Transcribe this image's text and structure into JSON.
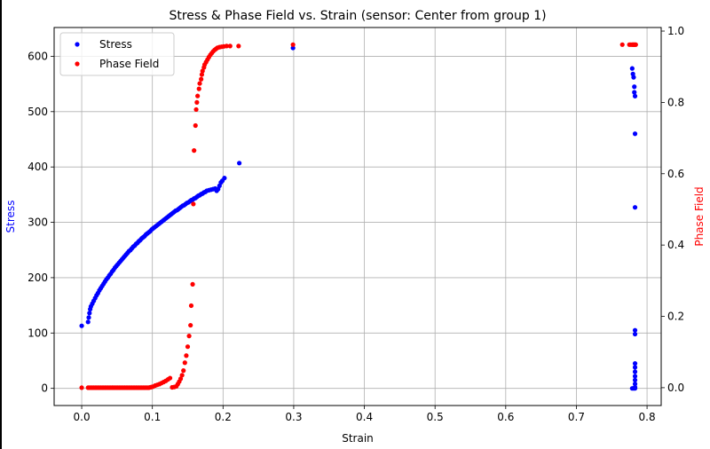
{
  "chart_data": {
    "type": "scatter",
    "title": "Stress & Phase Field vs. Strain (sensor: Center from group 1)",
    "xlabel": "Strain",
    "ylabel_left": "Stress",
    "ylabel_right": "Phase Field",
    "xlim": [
      -0.039,
      0.82
    ],
    "ylim_left": [
      -31,
      652
    ],
    "ylim_right": [
      -0.05,
      1.01
    ],
    "x_ticks": [
      0.0,
      0.1,
      0.2,
      0.3,
      0.4,
      0.5,
      0.6,
      0.7,
      0.8
    ],
    "x_tick_labels": [
      "0.0",
      "0.1",
      "0.2",
      "0.3",
      "0.4",
      "0.5",
      "0.6",
      "0.7",
      "0.8"
    ],
    "y_left_ticks": [
      0,
      100,
      200,
      300,
      400,
      500,
      600
    ],
    "y_left_tick_labels": [
      "0",
      "100",
      "200",
      "300",
      "400",
      "500",
      "600"
    ],
    "y_right_ticks": [
      0.0,
      0.2,
      0.4,
      0.6,
      0.8,
      1.0
    ],
    "y_right_tick_labels": [
      "0.0",
      "0.2",
      "0.4",
      "0.6",
      "0.8",
      "1.0"
    ],
    "grid": true,
    "legend_position": "upper-left",
    "series": [
      {
        "name": "Stress",
        "axis": "left",
        "color": "#0000ff",
        "points": [
          [
            0.0,
            113
          ],
          [
            0.009,
            120
          ],
          [
            0.01,
            128
          ],
          [
            0.011,
            136
          ],
          [
            0.012,
            143
          ],
          [
            0.013,
            148
          ],
          [
            0.015,
            153
          ],
          [
            0.017,
            158
          ],
          [
            0.019,
            163
          ],
          [
            0.021,
            168
          ],
          [
            0.023,
            172
          ],
          [
            0.025,
            177
          ],
          [
            0.027,
            181
          ],
          [
            0.029,
            185
          ],
          [
            0.031,
            189
          ],
          [
            0.033,
            193
          ],
          [
            0.035,
            197
          ],
          [
            0.037,
            200
          ],
          [
            0.039,
            204
          ],
          [
            0.041,
            207
          ],
          [
            0.043,
            211
          ],
          [
            0.045,
            214
          ],
          [
            0.047,
            218
          ],
          [
            0.049,
            221
          ],
          [
            0.051,
            224
          ],
          [
            0.053,
            227
          ],
          [
            0.055,
            230
          ],
          [
            0.057,
            233
          ],
          [
            0.059,
            236
          ],
          [
            0.061,
            239
          ],
          [
            0.063,
            242
          ],
          [
            0.065,
            245
          ],
          [
            0.067,
            248
          ],
          [
            0.069,
            250
          ],
          [
            0.071,
            253
          ],
          [
            0.073,
            256
          ],
          [
            0.075,
            258
          ],
          [
            0.077,
            261
          ],
          [
            0.079,
            263
          ],
          [
            0.081,
            266
          ],
          [
            0.083,
            268
          ],
          [
            0.085,
            271
          ],
          [
            0.087,
            273
          ],
          [
            0.089,
            275
          ],
          [
            0.091,
            278
          ],
          [
            0.093,
            280
          ],
          [
            0.095,
            282
          ],
          [
            0.097,
            284
          ],
          [
            0.099,
            287
          ],
          [
            0.101,
            289
          ],
          [
            0.103,
            291
          ],
          [
            0.105,
            293
          ],
          [
            0.107,
            295
          ],
          [
            0.109,
            297
          ],
          [
            0.111,
            299
          ],
          [
            0.113,
            301
          ],
          [
            0.115,
            303
          ],
          [
            0.117,
            305
          ],
          [
            0.119,
            307
          ],
          [
            0.121,
            309
          ],
          [
            0.123,
            311
          ],
          [
            0.125,
            313
          ],
          [
            0.127,
            315
          ],
          [
            0.129,
            317
          ],
          [
            0.131,
            319
          ],
          [
            0.133,
            321
          ],
          [
            0.135,
            322
          ],
          [
            0.137,
            324
          ],
          [
            0.139,
            326
          ],
          [
            0.141,
            328
          ],
          [
            0.143,
            330
          ],
          [
            0.145,
            331
          ],
          [
            0.147,
            333
          ],
          [
            0.149,
            335
          ],
          [
            0.151,
            336
          ],
          [
            0.153,
            338
          ],
          [
            0.155,
            340
          ],
          [
            0.157,
            341
          ],
          [
            0.159,
            343
          ],
          [
            0.161,
            344
          ],
          [
            0.163,
            346
          ],
          [
            0.165,
            348
          ],
          [
            0.167,
            349
          ],
          [
            0.169,
            351
          ],
          [
            0.171,
            352
          ],
          [
            0.173,
            354
          ],
          [
            0.175,
            355
          ],
          [
            0.177,
            357
          ],
          [
            0.18,
            358
          ],
          [
            0.183,
            359
          ],
          [
            0.186,
            360
          ],
          [
            0.189,
            361
          ],
          [
            0.191,
            357
          ],
          [
            0.193,
            360
          ],
          [
            0.195,
            366
          ],
          [
            0.197,
            372
          ],
          [
            0.199,
            375
          ],
          [
            0.202,
            380
          ],
          [
            0.223,
            407
          ],
          [
            0.299,
            615
          ],
          [
            0.779,
            578
          ],
          [
            0.78,
            568
          ],
          [
            0.781,
            562
          ],
          [
            0.782,
            545
          ],
          [
            0.782,
            535
          ],
          [
            0.783,
            528
          ],
          [
            0.783,
            460
          ],
          [
            0.783,
            327
          ],
          [
            0.783,
            105
          ],
          [
            0.783,
            98
          ],
          [
            0.783,
            45
          ],
          [
            0.783,
            38
          ],
          [
            0.783,
            30
          ],
          [
            0.783,
            22
          ],
          [
            0.783,
            15
          ],
          [
            0.783,
            8
          ],
          [
            0.783,
            2
          ],
          [
            0.783,
            0
          ],
          [
            0.781,
            0
          ],
          [
            0.779,
            0
          ]
        ]
      },
      {
        "name": "Phase Field",
        "axis": "right",
        "color": "#ff0000",
        "points": [
          [
            0.0,
            0.0
          ],
          [
            0.009,
            0.0
          ],
          [
            0.011,
            0.0
          ],
          [
            0.013,
            0.0
          ],
          [
            0.015,
            0.0
          ],
          [
            0.017,
            0.0
          ],
          [
            0.019,
            0.0
          ],
          [
            0.021,
            0.0
          ],
          [
            0.023,
            0.0
          ],
          [
            0.025,
            0.0
          ],
          [
            0.027,
            0.0
          ],
          [
            0.029,
            0.0
          ],
          [
            0.031,
            0.0
          ],
          [
            0.033,
            0.0
          ],
          [
            0.035,
            0.0
          ],
          [
            0.037,
            0.0
          ],
          [
            0.039,
            0.0
          ],
          [
            0.041,
            0.0
          ],
          [
            0.043,
            0.0
          ],
          [
            0.045,
            0.0
          ],
          [
            0.047,
            0.0
          ],
          [
            0.049,
            0.0
          ],
          [
            0.051,
            0.0
          ],
          [
            0.053,
            0.0
          ],
          [
            0.055,
            0.0
          ],
          [
            0.057,
            0.0
          ],
          [
            0.059,
            0.0
          ],
          [
            0.061,
            0.0
          ],
          [
            0.063,
            0.0
          ],
          [
            0.065,
            0.0
          ],
          [
            0.067,
            0.0
          ],
          [
            0.069,
            0.0
          ],
          [
            0.071,
            0.0
          ],
          [
            0.073,
            0.0
          ],
          [
            0.075,
            0.0
          ],
          [
            0.077,
            0.0
          ],
          [
            0.079,
            0.0
          ],
          [
            0.081,
            0.0
          ],
          [
            0.083,
            0.0
          ],
          [
            0.085,
            0.0
          ],
          [
            0.087,
            0.0
          ],
          [
            0.089,
            0.0
          ],
          [
            0.091,
            0.0
          ],
          [
            0.093,
            0.0
          ],
          [
            0.095,
            0.0
          ],
          [
            0.097,
            0.001
          ],
          [
            0.099,
            0.002
          ],
          [
            0.101,
            0.003
          ],
          [
            0.104,
            0.006
          ],
          [
            0.107,
            0.008
          ],
          [
            0.11,
            0.01
          ],
          [
            0.113,
            0.013
          ],
          [
            0.116,
            0.016
          ],
          [
            0.119,
            0.019
          ],
          [
            0.122,
            0.023
          ],
          [
            0.125,
            0.027
          ],
          [
            0.128,
            0.001
          ],
          [
            0.131,
            0.002
          ],
          [
            0.134,
            0.004
          ],
          [
            0.136,
            0.01
          ],
          [
            0.138,
            0.017
          ],
          [
            0.14,
            0.025
          ],
          [
            0.142,
            0.035
          ],
          [
            0.144,
            0.048
          ],
          [
            0.146,
            0.07
          ],
          [
            0.148,
            0.09
          ],
          [
            0.15,
            0.115
          ],
          [
            0.152,
            0.145
          ],
          [
            0.154,
            0.175
          ],
          [
            0.155,
            0.23
          ],
          [
            0.157,
            0.29
          ],
          [
            0.158,
            0.515
          ],
          [
            0.159,
            0.665
          ],
          [
            0.161,
            0.735
          ],
          [
            0.162,
            0.78
          ],
          [
            0.163,
            0.8
          ],
          [
            0.164,
            0.818
          ],
          [
            0.166,
            0.838
          ],
          [
            0.167,
            0.853
          ],
          [
            0.169,
            0.865
          ],
          [
            0.17,
            0.878
          ],
          [
            0.171,
            0.888
          ],
          [
            0.173,
            0.898
          ],
          [
            0.174,
            0.906
          ],
          [
            0.176,
            0.913
          ],
          [
            0.178,
            0.92
          ],
          [
            0.18,
            0.927
          ],
          [
            0.182,
            0.933
          ],
          [
            0.184,
            0.938
          ],
          [
            0.186,
            0.943
          ],
          [
            0.188,
            0.947
          ],
          [
            0.19,
            0.95
          ],
          [
            0.192,
            0.953
          ],
          [
            0.195,
            0.955
          ],
          [
            0.198,
            0.956
          ],
          [
            0.201,
            0.957
          ],
          [
            0.205,
            0.958
          ],
          [
            0.21,
            0.958
          ],
          [
            0.222,
            0.958
          ],
          [
            0.299,
            0.962
          ],
          [
            0.765,
            0.962
          ],
          [
            0.775,
            0.962
          ],
          [
            0.777,
            0.962
          ],
          [
            0.779,
            0.962
          ],
          [
            0.78,
            0.962
          ],
          [
            0.781,
            0.962
          ],
          [
            0.782,
            0.962
          ],
          [
            0.783,
            0.962
          ],
          [
            0.784,
            0.962
          ]
        ]
      }
    ]
  }
}
